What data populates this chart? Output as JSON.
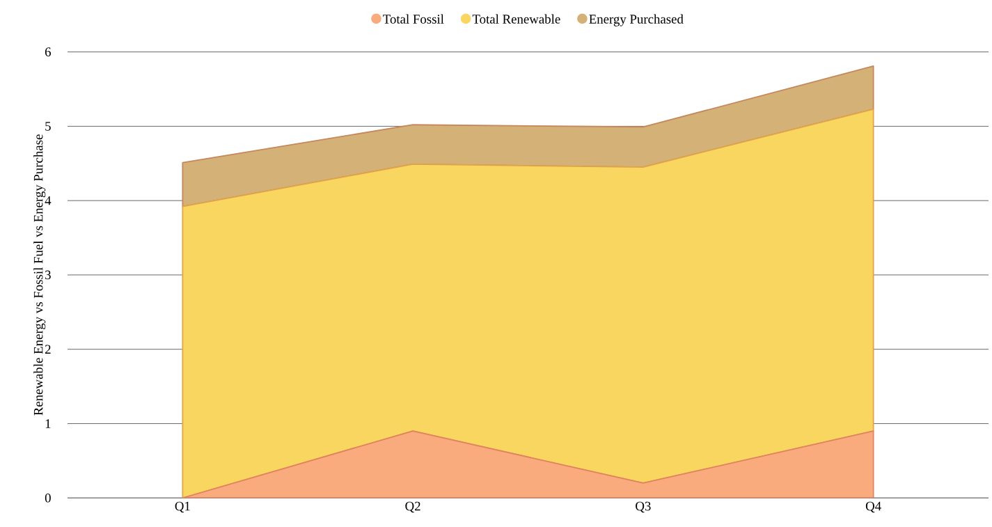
{
  "chart_data": {
    "type": "area",
    "stacked": true,
    "ylabel": "Renewable Energy vs Fossil Fuel vs Energy Purchase",
    "categories": [
      "Q1",
      "Q2",
      "Q3",
      "Q4"
    ],
    "series": [
      {
        "name": "Total Fossil",
        "color": "#f9ab7d",
        "values": [
          0,
          0.9,
          0.2,
          0.9
        ]
      },
      {
        "name": "Total Renewable",
        "color": "#f9d660",
        "values": [
          3.92,
          3.59,
          4.25,
          4.33
        ]
      },
      {
        "name": "Energy Purchased",
        "color": "#d4b177",
        "values": [
          0.59,
          0.53,
          0.54,
          0.58
        ]
      }
    ],
    "ylim": [
      0,
      6
    ],
    "yticks": [
      0,
      1,
      2,
      3,
      4,
      5,
      6
    ],
    "grid": "y",
    "legend": "top",
    "marker": "none"
  }
}
